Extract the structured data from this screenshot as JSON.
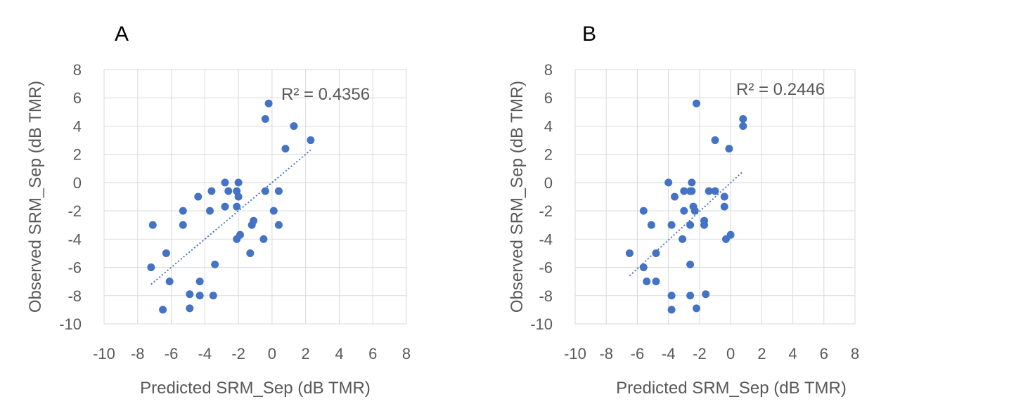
{
  "chart_data": [
    {
      "type": "scatter",
      "panel_label": "A",
      "xlabel": "Predicted SRM_Sep  (dB TMR)",
      "ylabel": "Observed SRM_Sep  (dB TMR)",
      "xlim": [
        -10,
        8
      ],
      "ylim": [
        -10,
        8
      ],
      "xticks": [
        -10,
        -8,
        -6,
        -4,
        -2,
        0,
        2,
        4,
        6,
        8
      ],
      "yticks": [
        -10,
        -8,
        -6,
        -4,
        -2,
        0,
        2,
        4,
        6,
        8
      ],
      "grid": true,
      "color": "#4472c4",
      "annotation": "R² = 0.4356",
      "trendline": {
        "style": "dotted",
        "x": [
          -7.2,
          2.3
        ],
        "y": [
          -7.2,
          2.3
        ]
      },
      "points": [
        [
          -0.2,
          5.6
        ],
        [
          -0.4,
          4.5
        ],
        [
          1.3,
          4.0
        ],
        [
          0.8,
          2.4
        ],
        [
          2.3,
          3.0
        ],
        [
          -2.8,
          0.0
        ],
        [
          -2.0,
          0.0
        ],
        [
          -2.6,
          -0.6
        ],
        [
          -2.1,
          -0.6
        ],
        [
          -2.0,
          -1.0
        ],
        [
          -0.4,
          -0.6
        ],
        [
          0.4,
          -0.6
        ],
        [
          -3.6,
          -0.6
        ],
        [
          -4.4,
          -1.0
        ],
        [
          -2.8,
          -1.7
        ],
        [
          -2.1,
          -1.7
        ],
        [
          -3.7,
          -2.0
        ],
        [
          -5.3,
          -2.0
        ],
        [
          0.1,
          -2.0
        ],
        [
          -1.1,
          -2.7
        ],
        [
          -1.2,
          -3.0
        ],
        [
          -5.3,
          -3.0
        ],
        [
          -7.1,
          -3.0
        ],
        [
          0.4,
          -3.0
        ],
        [
          -1.9,
          -3.7
        ],
        [
          -2.1,
          -4.0
        ],
        [
          -0.5,
          -4.0
        ],
        [
          -1.3,
          -5.0
        ],
        [
          -6.3,
          -5.0
        ],
        [
          -3.4,
          -5.8
        ],
        [
          -7.2,
          -6.0
        ],
        [
          -6.1,
          -7.0
        ],
        [
          -4.3,
          -7.0
        ],
        [
          -4.9,
          -7.9
        ],
        [
          -4.3,
          -8.0
        ],
        [
          -3.5,
          -8.0
        ],
        [
          -6.5,
          -9.0
        ],
        [
          -4.9,
          -8.9
        ]
      ]
    },
    {
      "type": "scatter",
      "panel_label": "B",
      "xlabel": "Predicted SRM_Sep  (dB TMR)",
      "ylabel": "Observed SRM_Sep  (dB TMR)",
      "xlim": [
        -10,
        8
      ],
      "ylim": [
        -10,
        8
      ],
      "xticks": [
        -10,
        -8,
        -6,
        -4,
        -2,
        0,
        2,
        4,
        6,
        8
      ],
      "yticks": [
        -10,
        -8,
        -6,
        -4,
        -2,
        0,
        2,
        4,
        6,
        8
      ],
      "grid": true,
      "color": "#4472c4",
      "annotation": "R² = 0.2446",
      "trendline": {
        "style": "dotted",
        "x": [
          -6.5,
          0.8
        ],
        "y": [
          -6.6,
          0.8
        ]
      },
      "points": [
        [
          -2.2,
          5.6
        ],
        [
          0.8,
          4.5
        ],
        [
          0.8,
          4.0
        ],
        [
          -1.0,
          3.0
        ],
        [
          -0.1,
          2.4
        ],
        [
          -4.0,
          0.0
        ],
        [
          -2.5,
          0.0
        ],
        [
          -3.6,
          -1.0
        ],
        [
          -2.5,
          -0.6
        ],
        [
          -3.0,
          -0.6
        ],
        [
          -2.6,
          -0.6
        ],
        [
          -1.4,
          -0.6
        ],
        [
          -1.0,
          -0.6
        ],
        [
          -0.4,
          -1.0
        ],
        [
          -2.4,
          -1.7
        ],
        [
          -0.4,
          -1.7
        ],
        [
          -5.6,
          -2.0
        ],
        [
          -3.0,
          -2.0
        ],
        [
          -2.3,
          -2.0
        ],
        [
          -1.7,
          -2.7
        ],
        [
          -1.7,
          -3.0
        ],
        [
          -2.6,
          -3.0
        ],
        [
          -3.8,
          -3.0
        ],
        [
          -5.1,
          -3.0
        ],
        [
          0.0,
          -3.7
        ],
        [
          -3.1,
          -4.0
        ],
        [
          -0.3,
          -4.0
        ],
        [
          -6.5,
          -5.0
        ],
        [
          -4.8,
          -5.0
        ],
        [
          -2.6,
          -5.8
        ],
        [
          -5.6,
          -6.0
        ],
        [
          -5.4,
          -7.0
        ],
        [
          -4.8,
          -7.0
        ],
        [
          -1.6,
          -7.9
        ],
        [
          -3.8,
          -8.0
        ],
        [
          -2.6,
          -8.0
        ],
        [
          -3.8,
          -9.0
        ],
        [
          -2.2,
          -8.9
        ]
      ]
    }
  ]
}
